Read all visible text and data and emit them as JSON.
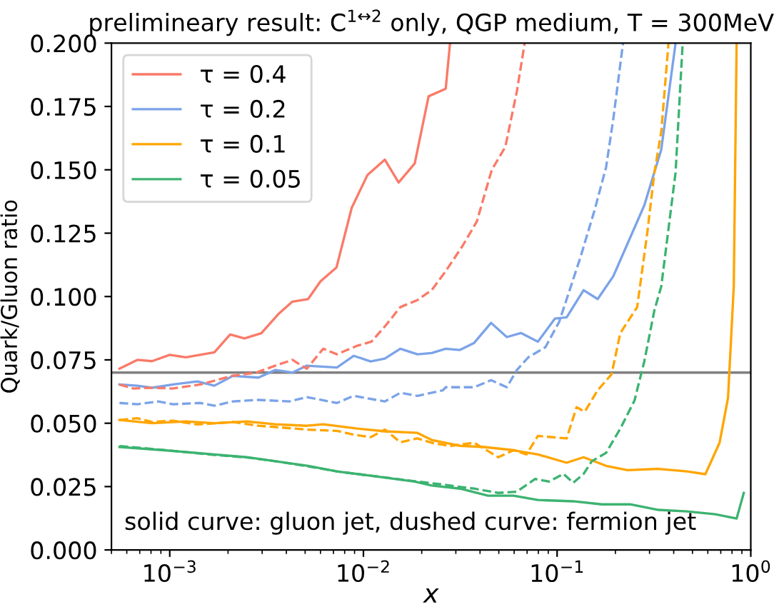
{
  "chart_data": {
    "type": "line",
    "title": "prelimineary result: C$^{1↔2}$ only, QGP medium, T = 300MeV",
    "xlabel": "x",
    "ylabel": "Quark/Gluon ratio",
    "annotations": [
      "solid curve: gluon jet, dushed curve: fermion jet"
    ],
    "log": "x",
    "xlim": [
      0.0005,
      1
    ],
    "ylim": [
      0,
      0.2
    ],
    "xticks": [
      {
        "value": 0.001,
        "label": "10$^{−3}$"
      },
      {
        "value": 0.01,
        "label": "10$^{−2}$"
      },
      {
        "value": 0.1,
        "label": "10$^{−1}$"
      },
      {
        "value": 1,
        "label": "10$^{0}$"
      }
    ],
    "yticks": [
      {
        "value": 0,
        "label": "0.000"
      },
      {
        "value": 0.025,
        "label": "0.025"
      },
      {
        "value": 0.05,
        "label": "0.050"
      },
      {
        "value": 0.075,
        "label": "0.075"
      },
      {
        "value": 0.1,
        "label": "0.100"
      },
      {
        "value": 0.125,
        "label": "0.125"
      },
      {
        "value": 0.15,
        "label": "0.150"
      },
      {
        "value": 0.175,
        "label": "0.175"
      },
      {
        "value": 0.2,
        "label": "0.200"
      }
    ],
    "grid": false,
    "legend": "top left",
    "marker": "none",
    "ref_lines": [
      {
        "axis": "y",
        "value": 0.07,
        "color": "#808080",
        "line_style": "solid"
      }
    ],
    "series": [
      {
        "name": "τ = 0.4",
        "color": "#fa7a68",
        "line_style": "solid",
        "x": [
          0.00055,
          0.00068,
          0.00081,
          0.001,
          0.00121,
          0.0017,
          0.00205,
          0.00243,
          0.00297,
          0.00363,
          0.0043,
          0.00518,
          0.006,
          0.00726,
          0.0087,
          0.0105,
          0.0129,
          0.0152,
          0.0184,
          0.0217,
          0.0266,
          0.028
        ],
        "values": [
          0.0715,
          0.075,
          0.0745,
          0.077,
          0.076,
          0.078,
          0.085,
          0.0835,
          0.0855,
          0.093,
          0.098,
          0.099,
          0.106,
          0.1115,
          0.135,
          0.148,
          0.154,
          0.145,
          0.1525,
          0.179,
          0.182,
          0.2
        ]
      },
      {
        "name": "τ = 0.2",
        "color": "#7ba3e8",
        "line_style": "solid",
        "x": [
          0.00055,
          0.00068,
          0.00081,
          0.00104,
          0.00139,
          0.0017,
          0.00212,
          0.00287,
          0.00351,
          0.0043,
          0.0051,
          0.0073,
          0.0089,
          0.0109,
          0.0129,
          0.0155,
          0.019,
          0.0225,
          0.0266,
          0.0315,
          0.0373,
          0.0456,
          0.055,
          0.065,
          0.0796,
          0.0975,
          0.112,
          0.137,
          0.162,
          0.195,
          0.282,
          0.345,
          0.409
        ],
        "values": [
          0.0653,
          0.0648,
          0.064,
          0.0653,
          0.0665,
          0.0648,
          0.0687,
          0.068,
          0.071,
          0.07,
          0.0727,
          0.072,
          0.0766,
          0.0744,
          0.0755,
          0.0794,
          0.0772,
          0.0777,
          0.0794,
          0.0789,
          0.0817,
          0.0896,
          0.084,
          0.0856,
          0.0822,
          0.0913,
          0.0918,
          0.1025,
          0.099,
          0.108,
          0.136,
          0.158,
          0.2
        ]
      },
      {
        "name": "τ = 0.1",
        "color": "#ffa500",
        "line_style": "solid",
        "x": [
          0.00055,
          0.00081,
          0.00121,
          0.0017,
          0.0025,
          0.00351,
          0.0051,
          0.0062,
          0.0093,
          0.0129,
          0.019,
          0.0225,
          0.0315,
          0.042,
          0.059,
          0.0796,
          0.112,
          0.137,
          0.179,
          0.231,
          0.334,
          0.468,
          0.583,
          0.69,
          0.763,
          0.817,
          0.845
        ],
        "values": [
          0.0513,
          0.05,
          0.0507,
          0.05,
          0.0507,
          0.0496,
          0.049,
          0.0496,
          0.0479,
          0.0468,
          0.0462,
          0.0434,
          0.0411,
          0.0406,
          0.0394,
          0.0377,
          0.0344,
          0.0366,
          0.0332,
          0.0315,
          0.032,
          0.031,
          0.0299,
          0.0423,
          0.06,
          0.104,
          0.2
        ]
      },
      {
        "name": "τ = 0.05",
        "color": "#3cb371",
        "line_style": "solid",
        "x": [
          0.00055,
          0.00091,
          0.0017,
          0.0025,
          0.00351,
          0.00518,
          0.0073,
          0.0109,
          0.0184,
          0.0225,
          0.0315,
          0.044,
          0.0596,
          0.0796,
          0.121,
          0.17,
          0.238,
          0.334,
          0.468,
          0.656,
          0.845,
          0.92
        ],
        "values": [
          0.0406,
          0.0394,
          0.0377,
          0.0366,
          0.035,
          0.0332,
          0.031,
          0.0293,
          0.027,
          0.0254,
          0.0242,
          0.0214,
          0.0214,
          0.0197,
          0.0192,
          0.018,
          0.018,
          0.0158,
          0.0152,
          0.0141,
          0.0124,
          0.0225
        ]
      },
      {
        "color": "#fa7a68",
        "line_style": "dashed",
        "x": [
          0.00055,
          0.00065,
          0.00081,
          0.00103,
          0.00144,
          0.0021,
          0.0028,
          0.0035,
          0.0043,
          0.0051,
          0.0062,
          0.0073,
          0.0093,
          0.011,
          0.013,
          0.0155,
          0.019,
          0.0225,
          0.0266,
          0.0325,
          0.0385,
          0.046,
          0.054,
          0.062,
          0.068
        ],
        "values": [
          0.0653,
          0.0637,
          0.064,
          0.0637,
          0.0653,
          0.0687,
          0.07,
          0.0727,
          0.075,
          0.0715,
          0.0794,
          0.0772,
          0.0806,
          0.0822,
          0.0885,
          0.0958,
          0.0986,
          0.1025,
          0.11,
          0.12,
          0.1296,
          0.15,
          0.159,
          0.181,
          0.2
        ]
      },
      {
        "color": "#7ba3e8",
        "line_style": "dashed",
        "x": [
          0.00055,
          0.00068,
          0.00087,
          0.00104,
          0.00144,
          0.0017,
          0.00212,
          0.00287,
          0.00416,
          0.0051,
          0.0073,
          0.0089,
          0.0129,
          0.0155,
          0.019,
          0.0257,
          0.0266,
          0.0373,
          0.0456,
          0.055,
          0.062,
          0.071,
          0.087,
          0.1025,
          0.132,
          0.156,
          0.179,
          0.195,
          0.219
        ],
        "values": [
          0.058,
          0.0575,
          0.0586,
          0.0575,
          0.058,
          0.0569,
          0.0586,
          0.0592,
          0.0586,
          0.0603,
          0.058,
          0.0608,
          0.0586,
          0.062,
          0.0608,
          0.063,
          0.0642,
          0.0642,
          0.067,
          0.0642,
          0.071,
          0.076,
          0.08,
          0.09,
          0.1155,
          0.134,
          0.151,
          0.17,
          0.2
        ]
      },
      {
        "color": "#ffa500",
        "line_style": "dashed",
        "x": [
          0.00055,
          0.00068,
          0.00081,
          0.00104,
          0.00139,
          0.00212,
          0.00287,
          0.00351,
          0.0051,
          0.0073,
          0.0089,
          0.0109,
          0.0129,
          0.0155,
          0.019,
          0.0225,
          0.028,
          0.0373,
          0.0497,
          0.0598,
          0.0695,
          0.0796,
          0.112,
          0.126,
          0.139,
          0.162,
          0.191,
          0.212,
          0.259,
          0.292,
          0.318,
          0.345,
          0.376
        ],
        "values": [
          0.0513,
          0.052,
          0.0505,
          0.051,
          0.0495,
          0.0505,
          0.049,
          0.0485,
          0.0475,
          0.047,
          0.0455,
          0.0445,
          0.0475,
          0.0425,
          0.044,
          0.0423,
          0.041,
          0.0423,
          0.0366,
          0.0394,
          0.0377,
          0.045,
          0.044,
          0.0563,
          0.0546,
          0.063,
          0.0693,
          0.0856,
          0.0958,
          0.125,
          0.149,
          0.165,
          0.2
        ]
      },
      {
        "color": "#3cb371",
        "line_style": "dashed",
        "x": [
          0.00055,
          0.00091,
          0.0017,
          0.0025,
          0.00351,
          0.00518,
          0.0073,
          0.0109,
          0.019,
          0.0257,
          0.028,
          0.0373,
          0.0497,
          0.062,
          0.077,
          0.091,
          0.108,
          0.121,
          0.137,
          0.151,
          0.179,
          0.212,
          0.251,
          0.282,
          0.318,
          0.345,
          0.409,
          0.445
        ],
        "values": [
          0.041,
          0.0395,
          0.0375,
          0.0365,
          0.035,
          0.033,
          0.031,
          0.0293,
          0.027,
          0.0258,
          0.0254,
          0.0242,
          0.0225,
          0.023,
          0.028,
          0.027,
          0.03,
          0.0265,
          0.03,
          0.035,
          0.0383,
          0.0479,
          0.059,
          0.0744,
          0.0946,
          0.104,
          0.149,
          0.2
        ]
      }
    ]
  }
}
